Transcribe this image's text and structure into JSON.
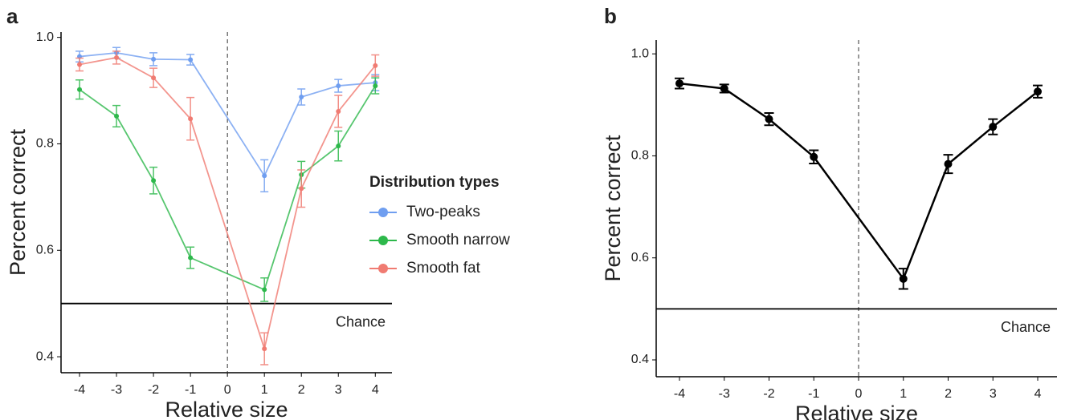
{
  "chart_data": [
    {
      "type": "line",
      "panel_label": "a",
      "xlabel": "Relative size",
      "ylabel": "Percent correct",
      "x": [
        -4,
        -3,
        -2,
        -1,
        1,
        2,
        3,
        4
      ],
      "series": [
        {
          "name": "Two-peaks",
          "color": "#6f9ef0",
          "values": [
            0.964,
            0.971,
            0.959,
            0.958,
            0.74,
            0.888,
            0.909,
            0.915
          ],
          "errors": [
            0.01,
            0.01,
            0.012,
            0.01,
            0.03,
            0.015,
            0.012,
            0.015
          ]
        },
        {
          "name": "Smooth narrow",
          "color": "#2db84b",
          "values": [
            0.902,
            0.852,
            0.731,
            0.586,
            0.526,
            0.742,
            0.796,
            0.909
          ],
          "errors": [
            0.018,
            0.02,
            0.025,
            0.02,
            0.022,
            0.025,
            0.028,
            0.015
          ]
        },
        {
          "name": "Smooth fat",
          "color": "#f07b72",
          "values": [
            0.949,
            0.962,
            0.924,
            0.847,
            0.415,
            0.716,
            0.861,
            0.947
          ],
          "errors": [
            0.012,
            0.012,
            0.018,
            0.04,
            0.03,
            0.035,
            0.03,
            0.02
          ]
        }
      ],
      "legend_title": "Distribution types",
      "xlim": [
        -4.5,
        4.45
      ],
      "ylim": [
        0.37,
        1.01
      ],
      "xticks": [
        -4,
        -3,
        -2,
        -1,
        0,
        1,
        2,
        3,
        4
      ],
      "yticks": [
        0.4,
        0.6,
        0.8,
        {
          "value": 1.0,
          "label": "1.0"
        }
      ],
      "vline": 0,
      "hline": 0.5,
      "hline_label": "Chance"
    },
    {
      "type": "line",
      "panel_label": "b",
      "xlabel": "Relative size",
      "ylabel": "Percent correct",
      "x": [
        -4,
        -3,
        -2,
        -1,
        1,
        2,
        3,
        4
      ],
      "series": [
        {
          "color": "#000000",
          "values": [
            0.942,
            0.932,
            0.872,
            0.798,
            0.559,
            0.784,
            0.857,
            0.926
          ],
          "errors": [
            0.01,
            0.008,
            0.012,
            0.013,
            0.02,
            0.018,
            0.015,
            0.012
          ]
        }
      ],
      "xlim": [
        -4.52,
        4.43
      ],
      "ylim": [
        0.367,
        1.027
      ],
      "xticks": [
        -4,
        -3,
        -2,
        -1,
        0,
        1,
        2,
        3,
        4
      ],
      "yticks": [
        0.4,
        0.6,
        0.8,
        {
          "value": 1.0,
          "label": "1.0"
        }
      ],
      "vline": 0,
      "hline": 0.5,
      "hline_label": "Chance"
    }
  ]
}
